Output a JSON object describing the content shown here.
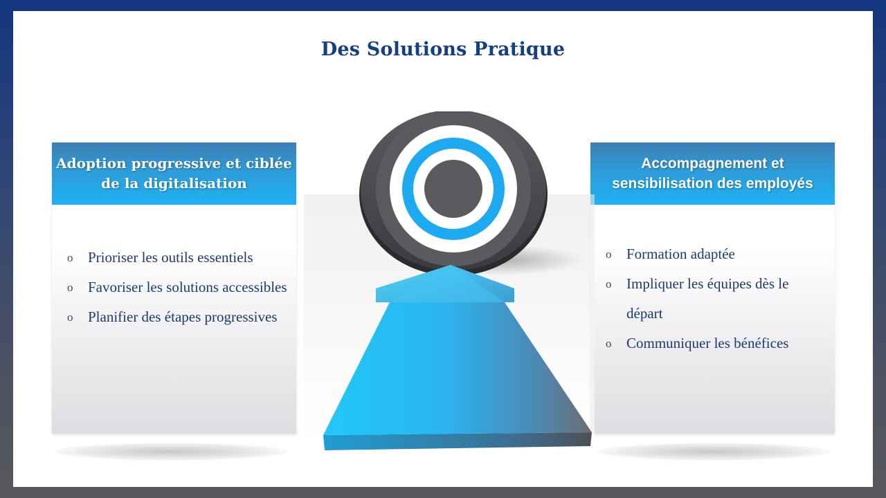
{
  "title": "Des Solutions Pratique",
  "left_panel": {
    "heading": "Adoption progressive et ciblée de la digitalisation",
    "items": [
      "Prioriser les outils essentiels",
      "Favoriser les solutions accessibles",
      "Planifier des étapes progressives"
    ]
  },
  "right_panel": {
    "heading": "Accompagnement et sensibilisation des employés",
    "items": [
      "Formation adaptée",
      "Impliquer les équipes dès le départ",
      "Communiquer les bénéfices"
    ]
  },
  "bullet_symbol": "o",
  "colors": {
    "title": "#163f82",
    "header_blue": "#1fb1f3",
    "target_gray": "#55565a",
    "target_blue": "#1aa8ec"
  },
  "icons": {
    "center": "target-icon",
    "arrow": "arrow-up-icon"
  }
}
